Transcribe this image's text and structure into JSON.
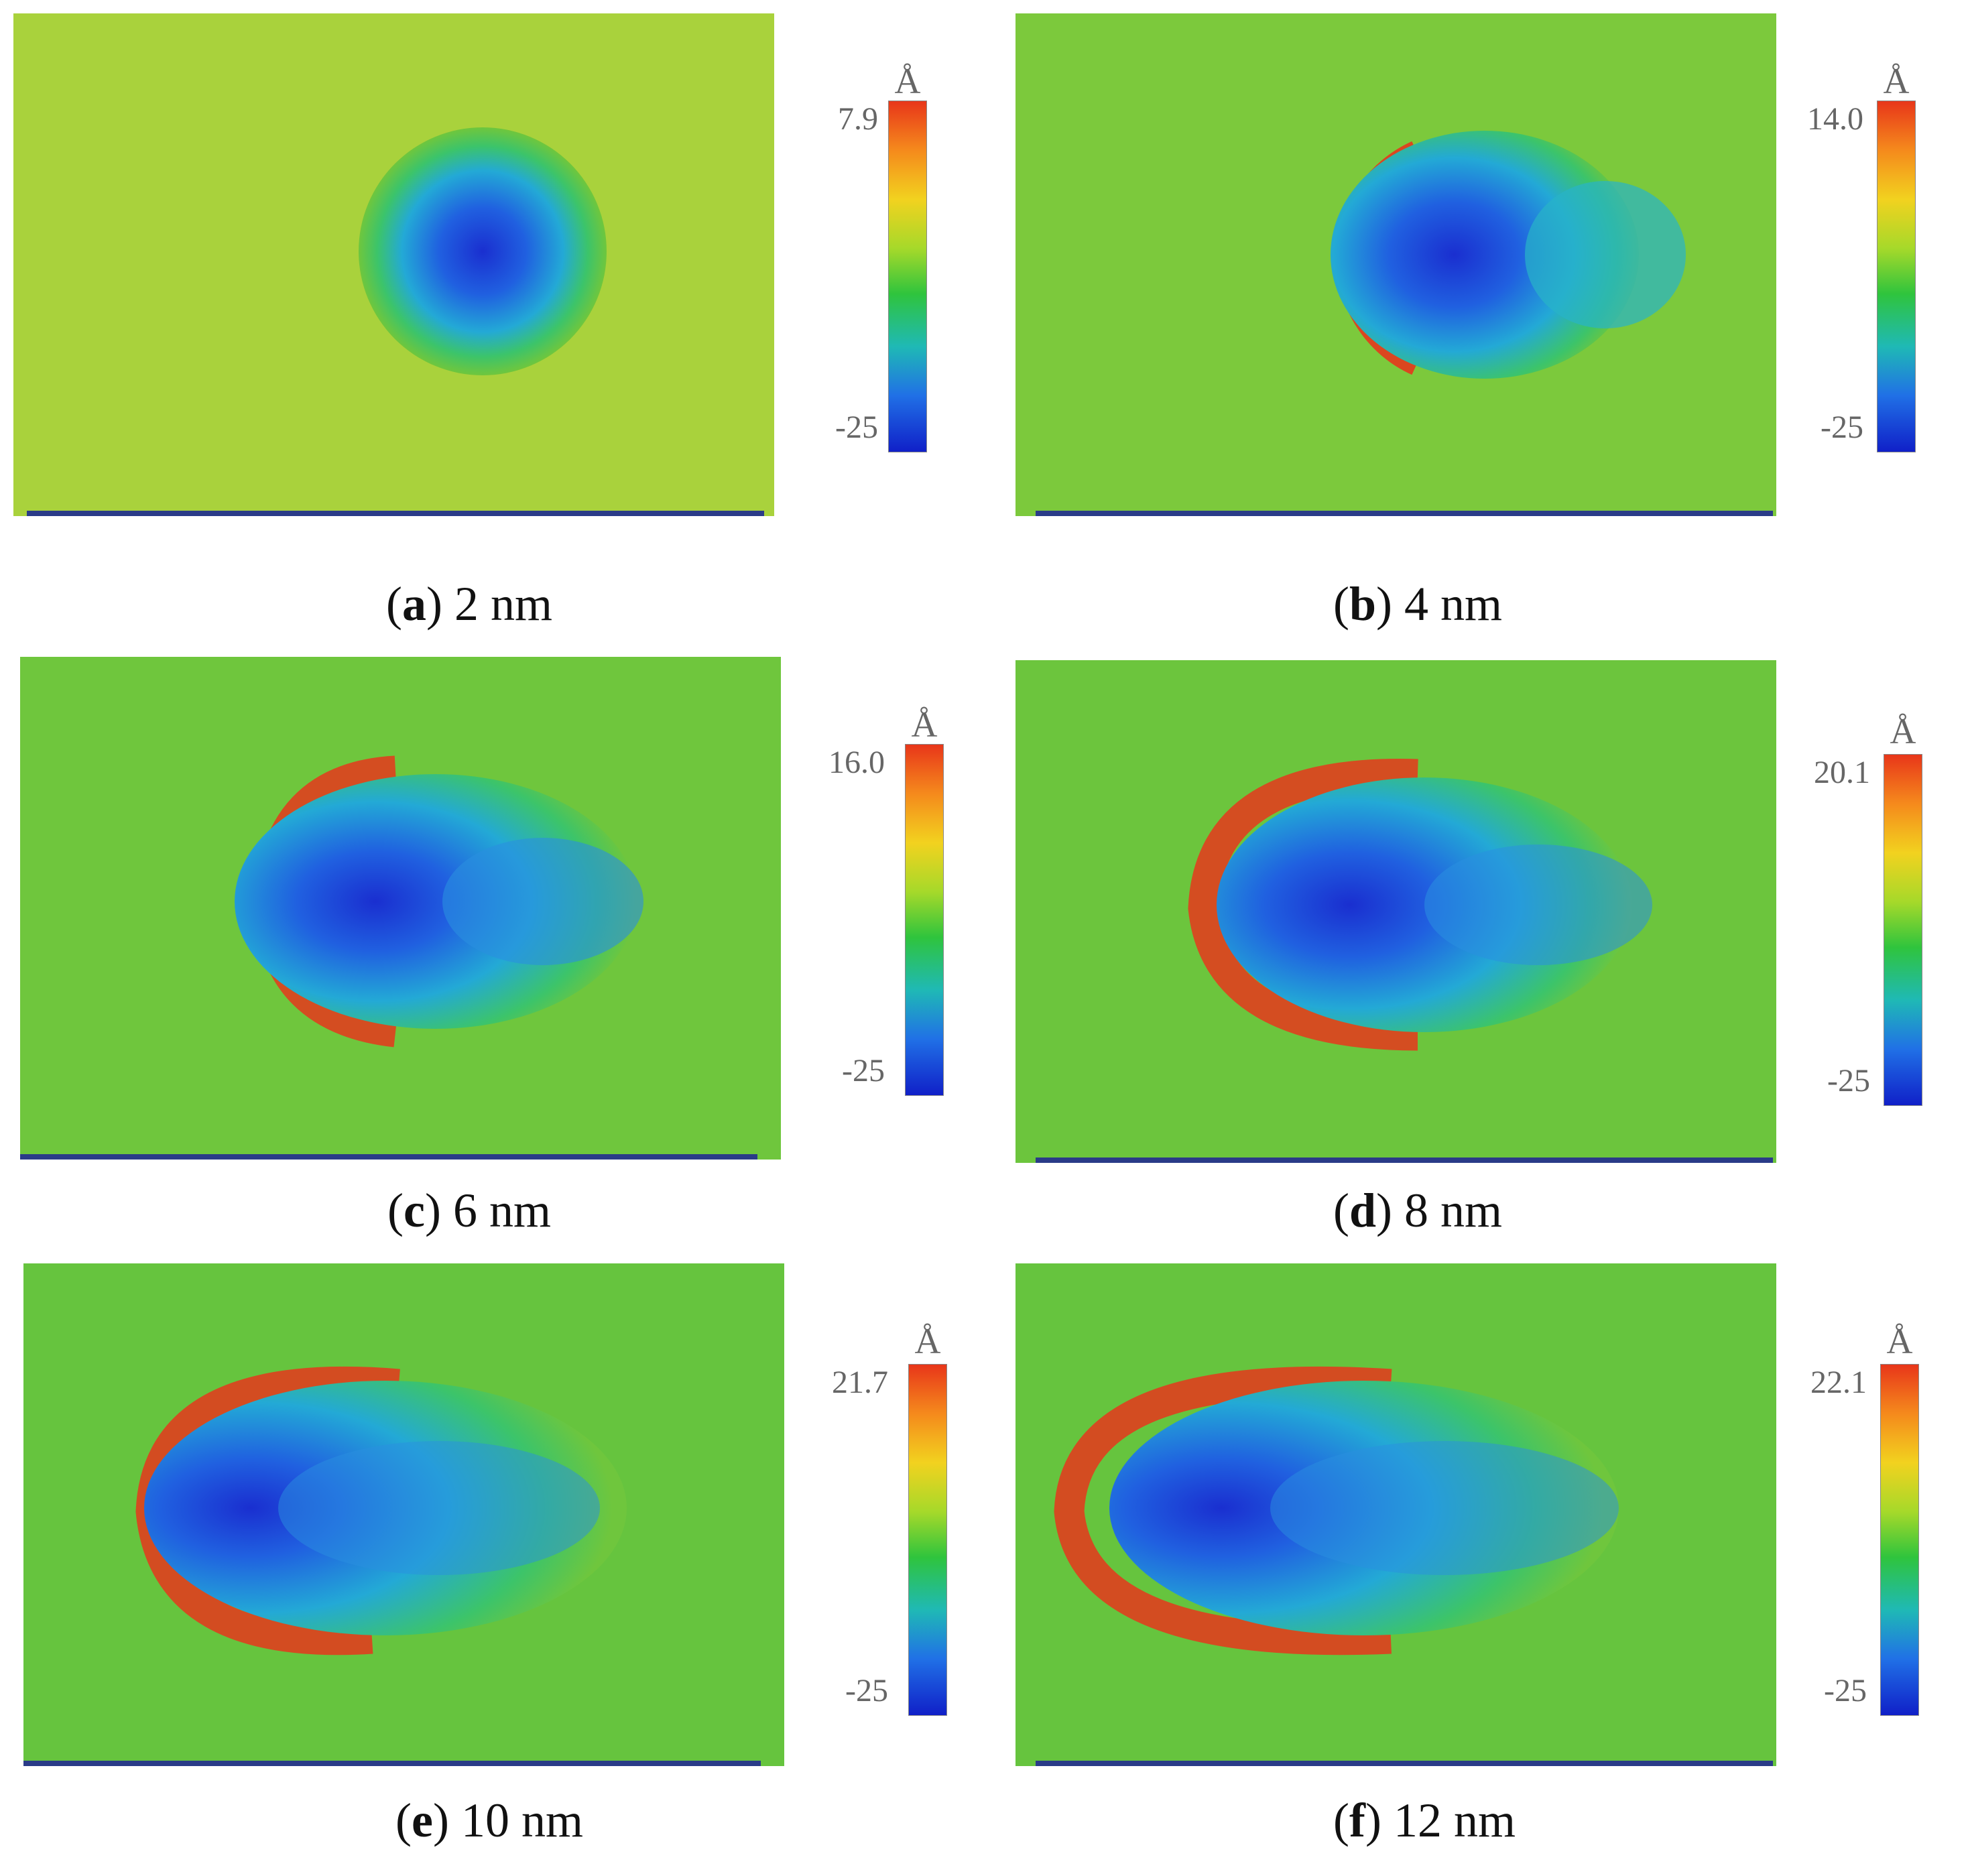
{
  "unit_label": "Å",
  "panels": [
    {
      "letter": "a",
      "caption": "2 nm",
      "max": "7.9",
      "min": "-25",
      "bg": "#a9d23c"
    },
    {
      "letter": "b",
      "caption": "4 nm",
      "max": "14.0",
      "min": "-25",
      "bg": "#7cc93c"
    },
    {
      "letter": "c",
      "caption": "6 nm",
      "max": "16.0",
      "min": "-25",
      "bg": "#6fc63d"
    },
    {
      "letter": "d",
      "caption": "8 nm",
      "max": "20.1",
      "min": "-25",
      "bg": "#6cc53d"
    },
    {
      "letter": "e",
      "caption": "10 nm",
      "max": "21.7",
      "min": "-25",
      "bg": "#66c43e"
    },
    {
      "letter": "f",
      "caption": "12 nm",
      "max": "22.1",
      "min": "-25",
      "bg": "#66c43e"
    }
  ],
  "colors": {
    "hot": "#e6371c",
    "warm": "#f2a41e",
    "cool": "#29b7c4",
    "deep": "#1b3fd2",
    "mid_blue": "#2a8fe0"
  }
}
